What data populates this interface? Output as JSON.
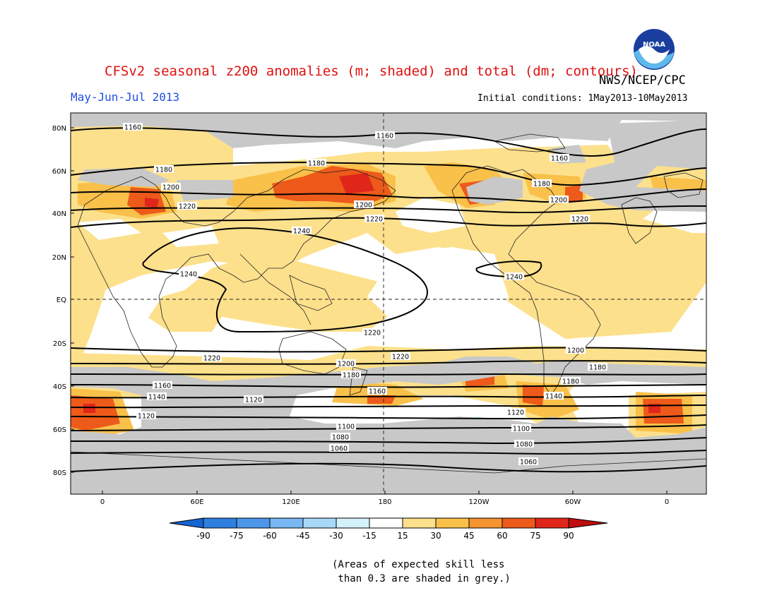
{
  "title": "CFSv2 seasonal z200 anomalies (m; shaded) and total (dm; contours)",
  "agency": "NWS/NCEP/CPC",
  "season": "May-Jun-Jul 2013",
  "initial_conditions": "Initial conditions: 1May2013-10May2013",
  "logo_text": "NOAA",
  "lat_labels": [
    "80N",
    "60N",
    "40N",
    "20N",
    "EQ",
    "20S",
    "40S",
    "60S",
    "80S"
  ],
  "lon_labels": [
    "0",
    "60E",
    "120E",
    "180",
    "120W",
    "60W",
    "0"
  ],
  "colorbar": {
    "ticks": [
      "-90",
      "-75",
      "-60",
      "-45",
      "-30",
      "-15",
      "15",
      "30",
      "45",
      "60",
      "75",
      "90"
    ],
    "colors": [
      "#1464d2",
      "#2f7fe0",
      "#4d97eb",
      "#78b7f3",
      "#a8d8f8",
      "#d4f2fb",
      "#ffffff",
      "#fde08c",
      "#f9c04a",
      "#f59331",
      "#ed5a1a",
      "#e0261a",
      "#c00d0d"
    ]
  },
  "skill_note": "(Areas of expected skill less\n than 0.3 are shaded in grey.)",
  "contour_labels": [
    "1160",
    "1160",
    "1160",
    "1180",
    "1180",
    "1180",
    "1200",
    "1200",
    "1200",
    "1220",
    "1220",
    "1220",
    "1240",
    "1240",
    "1240",
    "1220",
    "1220",
    "1220",
    "1200",
    "1200",
    "1180",
    "1180",
    "1180",
    "1160",
    "1160",
    "1140",
    "1140",
    "1120",
    "1120",
    "1120",
    "1100",
    "1100",
    "1080",
    "1080",
    "1060",
    "1060"
  ],
  "grey_color": "#c8c8c8"
}
